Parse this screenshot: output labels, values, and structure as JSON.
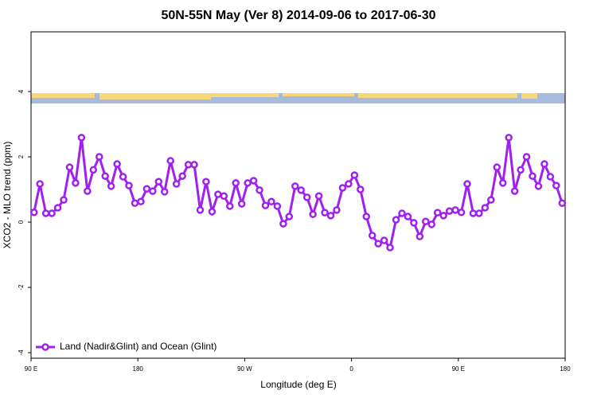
{
  "chart_data": {
    "type": "line",
    "title": "50N-55N May (Ver 8)   2014-09-06 to 2017-06-30",
    "x_label": "Longitude (deg E)",
    "y_label": "XCO2 - MLO trend (ppm)",
    "x": [
      92.5,
      97.5,
      102.5,
      107.5,
      112.5,
      117.5,
      122.5,
      127.5,
      132.5,
      137.5,
      142.5,
      147.5,
      152.5,
      157.5,
      162.5,
      167.5,
      172.5,
      177.5,
      182.5,
      187.5,
      192.5,
      197.5,
      202.5,
      207.5,
      212.5,
      217.5,
      222.5,
      227.5,
      232.5,
      237.5,
      242.5,
      247.5,
      252.5,
      257.5,
      262.5,
      267.5,
      272.5,
      277.5,
      282.5,
      287.5,
      292.5,
      297.5,
      302.5,
      307.5,
      312.5,
      317.5,
      322.5,
      327.5,
      332.5,
      337.5,
      342.5,
      347.5,
      352.5,
      357.5,
      362.5,
      367.5,
      372.5,
      377.5,
      382.5,
      387.5,
      392.5,
      397.5,
      402.5,
      407.5,
      412.5,
      417.5,
      422.5,
      427.5,
      432.5,
      437.5,
      442.5,
      447.5,
      452.5,
      457.5,
      462.5,
      467.5,
      472.5,
      477.5,
      482.5,
      487.5,
      492.5,
      497.5,
      502.5,
      507.5,
      512.5,
      517.5,
      522.5,
      527.5,
      532.5,
      537.5
    ],
    "series": [
      {
        "name": "Land (Nadir&Glint) and Ocean (Glint)",
        "color": "#a020f0",
        "values": [
          0.3,
          1.17,
          0.27,
          0.27,
          0.44,
          0.68,
          1.68,
          1.2,
          2.59,
          0.95,
          1.6,
          2.0,
          1.41,
          1.1,
          1.78,
          1.39,
          1.12,
          0.58,
          0.63,
          1.02,
          0.95,
          1.24,
          0.93,
          1.88,
          1.17,
          1.41,
          1.76,
          1.76,
          0.37,
          1.24,
          0.32,
          0.85,
          0.8,
          0.49,
          1.2,
          0.56,
          1.2,
          1.27,
          0.98,
          0.51,
          0.63,
          0.49,
          -0.05,
          0.17,
          1.1,
          0.98,
          0.76,
          0.24,
          0.8,
          0.29,
          0.2,
          0.37,
          1.05,
          1.17,
          1.44,
          1.0,
          0.17,
          -0.41,
          -0.66,
          -0.56,
          -0.78,
          0.07,
          0.27,
          0.17,
          -0.02,
          -0.44,
          0.02,
          -0.07,
          0.29,
          0.2,
          0.34,
          0.37,
          0.3,
          1.17,
          0.27,
          0.27,
          0.44,
          0.68,
          1.68,
          1.2,
          2.59,
          0.95,
          1.6,
          2.0,
          1.41,
          1.1,
          1.78,
          1.39,
          1.12,
          0.58
        ]
      }
    ],
    "xlim": [
      90,
      540
    ],
    "xticks": [
      {
        "value": 90,
        "label": "90 E"
      },
      180,
      {
        "value": 270,
        "label": "90 W"
      },
      {
        "value": 360,
        "label": "0"
      },
      {
        "value": 450,
        "label": "90 E"
      },
      {
        "value": 540,
        "label": "180"
      }
    ],
    "ylim": [
      -4.17,
      5.83
    ],
    "yticks": [
      -4,
      -2,
      0,
      2,
      4
    ],
    "legend": "bottom-left"
  }
}
